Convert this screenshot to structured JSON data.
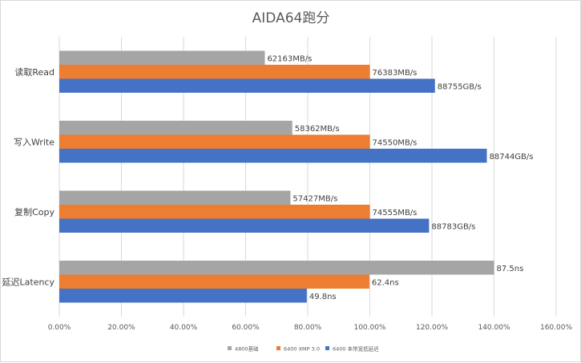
{
  "chart_data": {
    "type": "bar",
    "orientation": "horizontal",
    "title": "AIDA64跑分",
    "categories": [
      "读取Read",
      "写入Write",
      "复制Copy",
      "延迟Latency"
    ],
    "series": [
      {
        "name": "4800基础",
        "color": "#a5a5a5",
        "values": [
          0.6618,
          0.7503,
          0.7443,
          1.4
        ],
        "labels": [
          "62163MB/s",
          "58362MB/s",
          "57427MB/s",
          "87.5ns"
        ]
      },
      {
        "name": "6400 XMP 3.0",
        "color": "#ed7d31",
        "values": [
          1.0,
          1.0,
          1.0,
          0.9985
        ],
        "labels": [
          "76383MB/s",
          "74550MB/s",
          "74555MB/s",
          "62.4ns"
        ]
      },
      {
        "name": "6400 本带宽低延迟",
        "color": "#4472c4",
        "values": [
          1.2097,
          1.3768,
          1.1907,
          0.797
        ],
        "labels": [
          "88755GB/s",
          "88744GB/s",
          "88783GB/s",
          "49.8ns"
        ]
      }
    ],
    "x_ticks": [
      "0.00%",
      "20.00%",
      "40.00%",
      "60.00%",
      "80.00%",
      "100.00%",
      "120.00%",
      "140.00%",
      "160.00%"
    ],
    "xlim": [
      0,
      1.6
    ],
    "grid": true,
    "legend_position": "bottom"
  }
}
